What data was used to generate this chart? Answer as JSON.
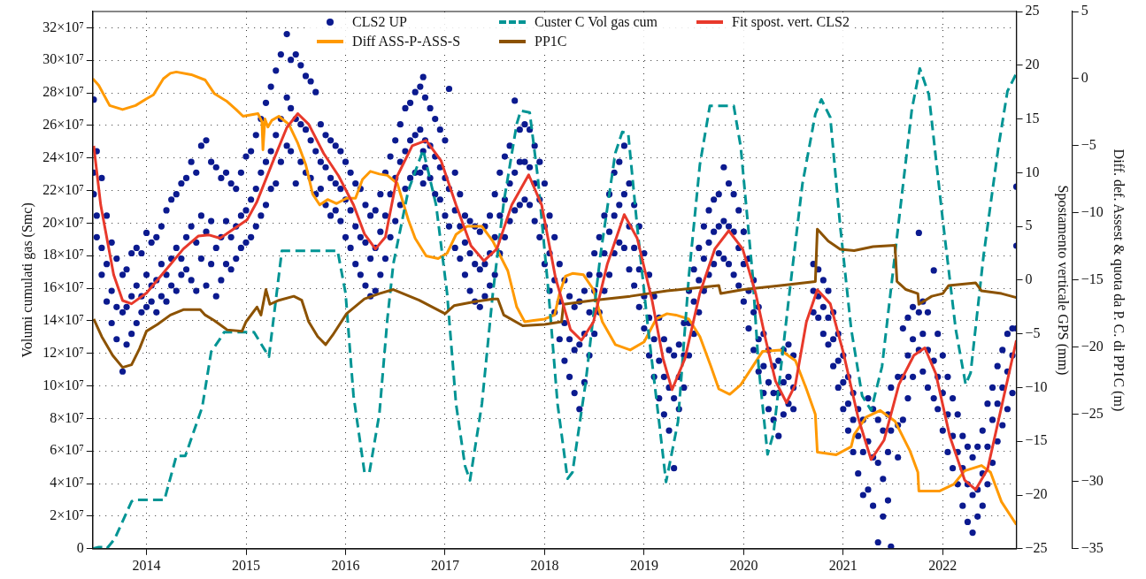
{
  "chart_data": {
    "type": "line",
    "ylabel": "Volumi cumulati gas (Smc)",
    "y2label": "Spostamento verticale GPS (mm)",
    "y3label": "Diff. def. Assest & quota da P. C. di PP1C (m)",
    "xlim": [
      2013.46,
      2022.74
    ],
    "xticks": [
      2014,
      2015,
      2016,
      2017,
      2018,
      2019,
      2020,
      2021,
      2022
    ],
    "ylim": [
      0,
      330000000
    ],
    "yticks": [
      0,
      {
        "value": 20000000,
        "label": "2×10⁷"
      },
      {
        "value": 40000000,
        "label": "4×10⁷"
      },
      {
        "value": 60000000,
        "label": "6×10⁷"
      },
      {
        "value": 80000000,
        "label": "8×10⁷"
      },
      {
        "value": 100000000,
        "label": "10×10⁷"
      },
      {
        "value": 120000000,
        "label": "12×10⁷"
      },
      {
        "value": 140000000,
        "label": "14×10⁷"
      },
      {
        "value": 160000000,
        "label": "16×10⁷"
      },
      {
        "value": 180000000,
        "label": "18×10⁷"
      },
      {
        "value": 200000000,
        "label": "20×10⁷"
      },
      {
        "value": 220000000,
        "label": "22×10⁷"
      },
      {
        "value": 240000000,
        "label": "24×10⁷"
      },
      {
        "value": 260000000,
        "label": "26×10⁷"
      },
      {
        "value": 280000000,
        "label": "28×10⁷"
      },
      {
        "value": 300000000,
        "label": "30×10⁷"
      },
      {
        "value": 320000000,
        "label": "32×10⁷"
      }
    ],
    "y2lim": [
      -25,
      25
    ],
    "y2ticks": [
      -25,
      -20,
      -15,
      -10,
      -5,
      0,
      5,
      10,
      15,
      20,
      25
    ],
    "y3lim": [
      -35,
      5
    ],
    "y3ticks": [
      -35,
      -30,
      -25,
      -20,
      -15,
      -10,
      -5,
      0,
      5
    ],
    "grid": true,
    "legend": "top",
    "series": [
      {
        "name": "CLS2 UP",
        "type": "scatter",
        "marker": "circle",
        "axis": "y2",
        "color": "#0b1a8f",
        "x": [
          2013.47,
          2013.47,
          2013.47,
          2013.5,
          2013.5,
          2013.5,
          2013.55,
          2013.55,
          2013.55,
          2013.6,
          2013.6,
          2013.6,
          2013.65,
          2013.65,
          2013.65,
          2013.7,
          2013.7,
          2013.7,
          2013.76,
          2013.76,
          2013.76,
          2013.8,
          2013.8,
          2013.8,
          2013.85,
          2013.85,
          2013.85,
          2013.9,
          2013.9,
          2013.9,
          2013.95,
          2013.95,
          2013.95,
          2014.0,
          2014.0,
          2014.0,
          2014.05,
          2014.05,
          2014.05,
          2014.1,
          2014.1,
          2014.1,
          2014.15,
          2014.15,
          2014.15,
          2014.2,
          2014.2,
          2014.2,
          2014.25,
          2014.25,
          2014.25,
          2014.3,
          2014.3,
          2014.3,
          2014.35,
          2014.35,
          2014.35,
          2014.4,
          2014.4,
          2014.4,
          2014.45,
          2014.45,
          2014.45,
          2014.5,
          2014.5,
          2014.5,
          2014.55,
          2014.55,
          2014.55,
          2014.6,
          2014.6,
          2014.6,
          2014.65,
          2014.65,
          2014.65,
          2014.7,
          2014.7,
          2014.7,
          2014.75,
          2014.75,
          2014.75,
          2014.8,
          2014.8,
          2014.8,
          2014.85,
          2014.85,
          2014.85,
          2014.9,
          2014.9,
          2014.9,
          2014.95,
          2014.95,
          2014.95,
          2015.0,
          2015.0,
          2015.0,
          2015.05,
          2015.05,
          2015.05,
          2015.1,
          2015.1,
          2015.1,
          2015.15,
          2015.15,
          2015.15,
          2015.2,
          2015.2,
          2015.2,
          2015.25,
          2015.25,
          2015.25,
          2015.3,
          2015.3,
          2015.3,
          2015.35,
          2015.35,
          2015.35,
          2015.41,
          2015.41,
          2015.41,
          2015.45,
          2015.45,
          2015.45,
          2015.5,
          2015.5,
          2015.5,
          2015.55,
          2015.55,
          2015.55,
          2015.6,
          2015.6,
          2015.6,
          2015.65,
          2015.65,
          2015.65,
          2015.7,
          2015.7,
          2015.7,
          2015.75,
          2015.75,
          2015.75,
          2015.8,
          2015.8,
          2015.8,
          2015.85,
          2015.85,
          2015.85,
          2015.9,
          2015.9,
          2015.9,
          2015.95,
          2015.95,
          2015.95,
          2016.0,
          2016.0,
          2016.0,
          2016.05,
          2016.05,
          2016.05,
          2016.1,
          2016.1,
          2016.1,
          2016.15,
          2016.15,
          2016.15,
          2016.2,
          2016.2,
          2016.2,
          2016.25,
          2016.25,
          2016.25,
          2016.3,
          2016.3,
          2016.3,
          2016.35,
          2016.35,
          2016.35,
          2016.4,
          2016.4,
          2016.4,
          2016.45,
          2016.45,
          2016.45,
          2016.5,
          2016.5,
          2016.5,
          2016.55,
          2016.55,
          2016.55,
          2016.6,
          2016.6,
          2016.6,
          2016.65,
          2016.65,
          2016.65,
          2016.7,
          2016.7,
          2016.7,
          2016.75,
          2016.75,
          2016.75,
          2016.78,
          2016.78,
          2016.78,
          2016.8,
          2016.8,
          2016.8,
          2016.85,
          2016.85,
          2016.85,
          2016.9,
          2016.9,
          2016.9,
          2016.95,
          2016.95,
          2016.95,
          2017.0,
          2017.0,
          2017.0,
          2017.04,
          2017.04,
          2017.04,
          2017.1,
          2017.1,
          2017.1,
          2017.15,
          2017.15,
          2017.15,
          2017.2,
          2017.2,
          2017.2,
          2017.25,
          2017.25,
          2017.25,
          2017.3,
          2017.3,
          2017.3,
          2017.35,
          2017.35,
          2017.35,
          2017.4,
          2017.4,
          2017.4,
          2017.45,
          2017.45,
          2017.45,
          2017.5,
          2017.5,
          2017.5,
          2017.55,
          2017.55,
          2017.55,
          2017.6,
          2017.6,
          2017.6,
          2017.65,
          2017.65,
          2017.65,
          2017.7,
          2017.7,
          2017.7,
          2017.75,
          2017.75,
          2017.75,
          2017.8,
          2017.8,
          2017.8,
          2017.85,
          2017.85,
          2017.85,
          2017.9,
          2017.9,
          2017.9,
          2017.95,
          2017.95,
          2017.95,
          2018.0,
          2018.0,
          2018.0,
          2018.05,
          2018.05,
          2018.05,
          2018.1,
          2018.1,
          2018.1,
          2018.15,
          2018.15,
          2018.15,
          2018.2,
          2018.2,
          2018.2,
          2018.25,
          2018.25,
          2018.25,
          2018.3,
          2018.3,
          2018.3,
          2018.35,
          2018.35,
          2018.35,
          2018.4,
          2018.4,
          2018.4,
          2018.45,
          2018.45,
          2018.45,
          2018.5,
          2018.5,
          2018.5,
          2018.55,
          2018.55,
          2018.55,
          2018.6,
          2018.6,
          2018.6,
          2018.65,
          2018.65,
          2018.65,
          2018.7,
          2018.7,
          2018.7,
          2018.75,
          2018.75,
          2018.75,
          2018.8,
          2018.8,
          2018.8,
          2018.85,
          2018.85,
          2018.85,
          2018.9,
          2018.9,
          2018.9,
          2018.95,
          2018.95,
          2018.95,
          2019.0,
          2019.0,
          2019.0,
          2019.05,
          2019.05,
          2019.05,
          2019.1,
          2019.1,
          2019.1,
          2019.15,
          2019.15,
          2019.15,
          2019.2,
          2019.2,
          2019.2,
          2019.25,
          2019.25,
          2019.25,
          2019.3,
          2019.3,
          2019.3,
          2019.35,
          2019.35,
          2019.35,
          2019.4,
          2019.4,
          2019.4,
          2019.45,
          2019.45,
          2019.45,
          2019.5,
          2019.5,
          2019.5,
          2019.55,
          2019.55,
          2019.55,
          2019.6,
          2019.6,
          2019.6,
          2019.65,
          2019.65,
          2019.65,
          2019.7,
          2019.7,
          2019.7,
          2019.75,
          2019.75,
          2019.75,
          2019.8,
          2019.8,
          2019.8,
          2019.85,
          2019.85,
          2019.85,
          2019.9,
          2019.9,
          2019.9,
          2019.95,
          2019.95,
          2019.95,
          2020.0,
          2020.0,
          2020.0,
          2020.05,
          2020.05,
          2020.05,
          2020.1,
          2020.1,
          2020.1,
          2020.15,
          2020.15,
          2020.15,
          2020.2,
          2020.2,
          2020.2,
          2020.25,
          2020.25,
          2020.25,
          2020.3,
          2020.3,
          2020.3,
          2020.35,
          2020.35,
          2020.35,
          2020.4,
          2020.4,
          2020.4,
          2020.45,
          2020.45,
          2020.45,
          2020.5,
          2020.5,
          2020.5,
          2020.7,
          2020.7,
          2020.7,
          2020.75,
          2020.75,
          2020.75,
          2020.8,
          2020.8,
          2020.8,
          2020.85,
          2020.85,
          2020.85,
          2020.9,
          2020.9,
          2020.9,
          2020.95,
          2020.95,
          2020.95,
          2021.0,
          2021.0,
          2021.0,
          2021.05,
          2021.05,
          2021.05,
          2021.1,
          2021.1,
          2021.1,
          2021.15,
          2021.15,
          2021.15,
          2021.2,
          2021.2,
          2021.2,
          2021.25,
          2021.25,
          2021.25,
          2021.3,
          2021.3,
          2021.3,
          2021.35,
          2021.35,
          2021.35,
          2021.4,
          2021.4,
          2021.4,
          2021.45,
          2021.45,
          2021.45,
          2021.48,
          2021.48,
          2021.48,
          2021.55,
          2021.55,
          2021.55,
          2021.6,
          2021.6,
          2021.6,
          2021.65,
          2021.65,
          2021.65,
          2021.7,
          2021.7,
          2021.7,
          2021.76,
          2021.76,
          2021.76,
          2021.8,
          2021.8,
          2021.8,
          2021.85,
          2021.85,
          2021.85,
          2021.91,
          2021.91,
          2021.91,
          2021.95,
          2021.95,
          2021.95,
          2022.0,
          2022.0,
          2022.0,
          2022.05,
          2022.05,
          2022.05,
          2022.1,
          2022.1,
          2022.1,
          2022.15,
          2022.15,
          2022.15,
          2022.2,
          2022.2,
          2022.2,
          2022.25,
          2022.25,
          2022.25,
          2022.3,
          2022.3,
          2022.3,
          2022.35,
          2022.35,
          2022.35,
          2022.4,
          2022.4,
          2022.4,
          2022.45,
          2022.45,
          2022.45,
          2022.5,
          2022.5,
          2022.5,
          2022.55,
          2022.55,
          2022.55,
          2022.6,
          2022.6,
          2022.6,
          2022.65,
          2022.65,
          2022.65,
          2022.7,
          2022.7,
          2022.7,
          2022.74,
          2022.74,
          2022.74
        ],
        "values": [
          16.8,
          10.0,
          8.0,
          12.0,
          6.0,
          4.0,
          9.5,
          3.0,
          0.5,
          6.0,
          1.5,
          -2.0,
          3.5,
          -1.0,
          -4.0,
          2.0,
          -2.5,
          -5.5,
          0.5,
          -3.0,
          -8.5,
          1.0,
          -2.5,
          -6.0,
          2.5,
          -1.5,
          -5.0,
          3.0,
          -0.5,
          -4.0,
          2.5,
          -1.5,
          -3.0,
          4.4,
          0.5,
          -2.5,
          3.5,
          -0.5,
          -2.0,
          4.0,
          0.0,
          -3.0,
          5.0,
          1.5,
          -1.5,
          6.5,
          0.5,
          -2.0,
          7.5,
          2.0,
          -0.5,
          8.0,
          3.0,
          -1.0,
          9.0,
          2.0,
          0.5,
          9.5,
          4.0,
          1.0,
          11.0,
          5.0,
          0.0,
          10.0,
          3.5,
          -1.0,
          12.5,
          6.0,
          2.0,
          13.0,
          4.5,
          -0.5,
          11.0,
          5.5,
          1.5,
          10.5,
          3.0,
          -1.5,
          9.5,
          4.0,
          0.0,
          10.0,
          5.5,
          1.5,
          9.0,
          4.0,
          1.0,
          8.5,
          5.0,
          2.0,
          10.0,
          6.0,
          3.0,
          11.5,
          6.5,
          3.5,
          12.0,
          7.5,
          4.0,
          13.5,
          8.5,
          5.0,
          15.0,
          10.0,
          6.0,
          16.5,
          11.0,
          7.0,
          18.0,
          12.0,
          8.5,
          19.5,
          13.5,
          9.0,
          21.0,
          15.0,
          11.0,
          22.9,
          17.0,
          12.5,
          20.5,
          16.0,
          12.0,
          21.0,
          15.0,
          9.0,
          20.0,
          14.5,
          11.0,
          19.0,
          14.0,
          10.0,
          18.5,
          13.0,
          9.5,
          17.5,
          12.0,
          8.0,
          14.5,
          11.0,
          8.5,
          13.5,
          10.5,
          7.0,
          13.0,
          9.5,
          6.0,
          12.5,
          9.0,
          6.5,
          12.0,
          8.5,
          5.5,
          11.0,
          7.5,
          4.0,
          10.0,
          6.5,
          3.0,
          9.0,
          5.0,
          1.5,
          8.5,
          4.0,
          0.5,
          7.0,
          3.5,
          -0.5,
          6.0,
          2.0,
          -1.5,
          6.5,
          3.0,
          -1.0,
          8.0,
          4.5,
          0.5,
          10.0,
          6.0,
          2.0,
          11.5,
          8.0,
          4.0,
          13.0,
          9.5,
          5.5,
          14.5,
          11.0,
          7.0,
          16.0,
          12.0,
          8.5,
          16.5,
          13.0,
          9.5,
          17.5,
          13.5,
          10.0,
          18.0,
          14.0,
          10.0,
          18.9,
          12.0,
          9.0,
          17.0,
          13.0,
          10.5,
          16.0,
          12.5,
          9.5,
          15.0,
          11.5,
          8.0,
          14.0,
          10.5,
          7.5,
          13.0,
          9.5,
          6.0,
          17.8,
          8.5,
          5.0,
          10.0,
          6.5,
          3.0,
          8.0,
          5.0,
          2.0,
          6.0,
          3.5,
          0.5,
          5.5,
          2.5,
          -1.0,
          5.0,
          1.5,
          -2.0,
          4.5,
          1.0,
          -2.5,
          5.0,
          1.5,
          -1.5,
          6.0,
          2.5,
          -0.5,
          8.0,
          4.0,
          0.5,
          10.0,
          6.0,
          2.5,
          11.5,
          7.5,
          4.0,
          12.5,
          9.0,
          5.5,
          16.7,
          10.0,
          6.5,
          14.0,
          11.0,
          7.0,
          14.5,
          11.0,
          7.5,
          14.0,
          10.5,
          7.0,
          12.5,
          9.0,
          5.5,
          11.0,
          7.5,
          4.0,
          9.0,
          5.0,
          1.5,
          6.0,
          2.5,
          -1.0,
          4.0,
          0.0,
          -3.0,
          1.5,
          -2.0,
          -5.5,
          0.0,
          -4.0,
          -7.5,
          -1.5,
          -5.5,
          -9.0,
          -2.5,
          -6.5,
          -10.5,
          -2.0,
          -6.0,
          -12.0,
          -1.0,
          -5.0,
          -9.5,
          0.5,
          -3.0,
          -7.0,
          2.5,
          -1.0,
          -5.0,
          4.0,
          0.5,
          -3.0,
          6.0,
          2.5,
          -1.0,
          8.0,
          4.5,
          0.5,
          10.0,
          6.0,
          2.5,
          11.0,
          7.0,
          3.5,
          12.5,
          8.0,
          3.0,
          9.0,
          5.0,
          1.0,
          7.0,
          3.0,
          -0.5,
          5.0,
          1.0,
          -2.5,
          2.5,
          -1.5,
          -4.5,
          0.5,
          -3.5,
          -7.0,
          -1.5,
          -5.5,
          -9.0,
          -3.5,
          -7.5,
          -11.0,
          -5.5,
          -9.0,
          -12.5,
          -6.5,
          -10.0,
          -14.0,
          -7.0,
          -11.0,
          -17.5,
          -6.0,
          -9.0,
          -12.0,
          -4.0,
          -7.0,
          -10.0,
          -1.0,
          -4.0,
          -7.0,
          1.0,
          -2.0,
          -5.0,
          3.0,
          0.0,
          -3.0,
          5.0,
          2.0,
          -1.0,
          6.5,
          3.5,
          0.5,
          7.5,
          4.5,
          1.5,
          8.0,
          5.0,
          2.5,
          10.5,
          5.5,
          2.0,
          9.0,
          5.0,
          1.5,
          8.0,
          4.5,
          0.5,
          6.5,
          3.0,
          -0.5,
          4.5,
          1.5,
          -2.0,
          2.0,
          -1.0,
          -4.5,
          0.0,
          -3.0,
          -6.5,
          -2.5,
          -5.5,
          -8.5,
          -5.0,
          -8.0,
          -10.5,
          -6.5,
          -9.5,
          -12.0,
          -8.0,
          -10.5,
          -13.0,
          -7.5,
          -10.5,
          -14.5,
          -6.5,
          -9.5,
          -12.5,
          -6.0,
          -9.0,
          -11.5,
          -7.0,
          -10.0,
          -12.0,
          1.5,
          -1.0,
          -3.0,
          1.0,
          -1.5,
          -3.5,
          0.0,
          -2.5,
          -5.0,
          -1.0,
          -3.5,
          -6.0,
          -3.0,
          -5.5,
          -8.0,
          -5.0,
          -7.5,
          -10.0,
          -7.0,
          -9.5,
          -12.0,
          -9.0,
          -11.5,
          -14.0,
          -10.5,
          -13.0,
          -16.0,
          -12.0,
          -14.5,
          -18.0,
          -13.0,
          -16.0,
          -20.0,
          -11.0,
          -15.0,
          -19.5,
          -12.0,
          -16.5,
          -21.0,
          -13.0,
          -17.0,
          -24.4,
          -14.0,
          -18.5,
          -22.0,
          -12.5,
          -16.0,
          -20.5,
          -10.0,
          -14.0,
          -24.8,
          -9.0,
          -13.5,
          -16.5,
          -4.5,
          -9.0,
          -13.0,
          -3.5,
          -7.0,
          -11.0,
          -2.5,
          -5.5,
          -9.0,
          4.4,
          -3.0,
          -6.5,
          -2.0,
          -5.0,
          -8.5,
          -3.0,
          -6.5,
          -10.0,
          0.9,
          -7.5,
          -11.0,
          -5.0,
          -9.0,
          -12.0,
          -7.0,
          -10.5,
          -14.0,
          -9.0,
          -12.5,
          -16.0,
          -11.0,
          -14.5,
          -17.5,
          -12.5,
          -16.0,
          -19.0,
          -14.5,
          -17.5,
          -21.0,
          -15.5,
          -19.0,
          -22.5,
          -16.5,
          -20.0,
          -23.5,
          -15.5,
          -19.5,
          -22.0,
          -14.0,
          -18.0,
          -21.0,
          -11.5,
          -15.5,
          -19.0,
          -10.0,
          -13.0,
          -17.0,
          -8.0,
          -11.5,
          -15.0,
          -6.5,
          -10.0,
          -13.5,
          -5.0,
          -8.5,
          -12.0,
          -4.5,
          -7.0,
          -10.5,
          8.7,
          3.2,
          -4.5
        ]
      },
      {
        "name": "Diff ASS-P-ASS-S",
        "type": "line",
        "axis": "y3",
        "color": "#ff9900",
        "x": [
          2013.46,
          2013.52,
          2013.63,
          2013.76,
          2013.89,
          2014.0,
          2014.07,
          2014.17,
          2014.24,
          2014.3,
          2014.45,
          2014.59,
          2014.68,
          2014.81,
          2014.9,
          2014.97,
          2015.12,
          2015.16,
          2015.17,
          2015.19,
          2015.22,
          2015.26,
          2015.33,
          2015.43,
          2015.52,
          2015.6,
          2015.67,
          2015.74,
          2015.82,
          2015.91,
          2016.01,
          2016.1,
          2016.17,
          2016.25,
          2016.34,
          2016.42,
          2016.52,
          2016.63,
          2016.7,
          2016.81,
          2016.93,
          2017.02,
          2017.11,
          2017.22,
          2017.37,
          2017.48,
          2017.63,
          2017.72,
          2017.8,
          2017.89,
          2018.0,
          2018.1,
          2018.15,
          2018.21,
          2018.28,
          2018.39,
          2018.49,
          2018.58,
          2018.71,
          2018.86,
          2019.0,
          2019.12,
          2019.23,
          2019.32,
          2019.45,
          2019.56,
          2019.67,
          2019.75,
          2019.86,
          2019.97,
          2020.19,
          2020.37,
          2020.52,
          2020.63,
          2020.72,
          2020.74,
          2020.93,
          2021.08,
          2021.11,
          2021.23,
          2021.37,
          2021.52,
          2021.67,
          2021.75,
          2021.76,
          2021.97,
          2022.11,
          2022.22,
          2022.39,
          2022.48,
          2022.59,
          2022.74
        ],
        "values": [
          0.0,
          -0.5,
          -2.0,
          -2.3,
          -2.0,
          -1.5,
          -1.2,
          0.0,
          0.4,
          0.5,
          0.3,
          -0.1,
          -1.1,
          -1.7,
          -2.3,
          -2.8,
          -2.6,
          -3.2,
          -5.3,
          -3.0,
          -3.6,
          -3.1,
          -2.8,
          -3.4,
          -4.8,
          -6.4,
          -8.6,
          -9.4,
          -9.0,
          -9.3,
          -8.9,
          -8.9,
          -7.5,
          -6.9,
          -7.1,
          -7.2,
          -7.8,
          -10.5,
          -11.9,
          -13.2,
          -13.4,
          -13.0,
          -11.6,
          -11.0,
          -11.0,
          -12.1,
          -14.3,
          -17.0,
          -18.1,
          -18.0,
          -17.9,
          -17.6,
          -16.0,
          -14.7,
          -14.5,
          -14.6,
          -15.7,
          -18.1,
          -19.8,
          -20.2,
          -19.6,
          -17.9,
          -17.5,
          -17.6,
          -17.9,
          -19.2,
          -21.4,
          -23.1,
          -23.5,
          -22.8,
          -20.3,
          -20.2,
          -21.0,
          -23.1,
          -25.0,
          -27.8,
          -28.0,
          -27.4,
          -26.5,
          -25.2,
          -24.7,
          -25.5,
          -27.7,
          -29.3,
          -30.7,
          -30.7,
          -30.2,
          -29.2,
          -28.8,
          -29.3,
          -31.5,
          -33.2
        ]
      },
      {
        "name": "Custer C Vol gas cum",
        "type": "line",
        "line_style": "dashed",
        "color": "#009494",
        "x": [
          2013.46,
          2013.52,
          2013.56,
          2013.6,
          2013.68,
          2013.85,
          2013.87,
          2014.18,
          2014.3,
          2014.39,
          2014.56,
          2014.65,
          2014.74,
          2014.78,
          2015.08,
          2015.23,
          2015.36,
          2015.92,
          2016.0,
          2016.08,
          2016.19,
          2016.24,
          2016.34,
          2016.42,
          2016.48,
          2016.63,
          2016.78,
          2016.91,
          2017.02,
          2017.11,
          2017.2,
          2017.25,
          2017.37,
          2017.48,
          2017.59,
          2017.72,
          2017.76,
          2017.85,
          2017.93,
          2018.04,
          2018.13,
          2018.23,
          2018.28,
          2018.41,
          2018.56,
          2018.71,
          2018.78,
          2018.84,
          2018.93,
          2019.04,
          2019.15,
          2019.22,
          2019.34,
          2019.45,
          2019.56,
          2019.66,
          2019.9,
          2019.97,
          2020.09,
          2020.15,
          2020.24,
          2020.3,
          2020.45,
          2020.59,
          2020.72,
          2020.78,
          2020.87,
          2020.97,
          2021.08,
          2021.19,
          2021.28,
          2021.39,
          2021.56,
          2021.69,
          2021.77,
          2021.86,
          2022.0,
          2022.13,
          2022.23,
          2022.28,
          2022.41,
          2022.56,
          2022.65,
          2022.74
        ],
        "values": [
          0,
          1000000,
          1000000,
          0,
          6000000,
          29000000,
          30000000,
          30000000,
          57000000,
          57000000,
          87000000,
          121000000,
          129000000,
          133000000,
          133000000,
          118000000,
          183000000,
          183000000,
          157000000,
          94000000,
          47000000,
          47000000,
          83000000,
          141000000,
          175000000,
          220000000,
          245000000,
          211000000,
          157000000,
          89000000,
          51000000,
          42000000,
          89000000,
          157000000,
          213000000,
          261000000,
          269000000,
          268000000,
          229000000,
          157000000,
          89000000,
          43000000,
          47000000,
          101000000,
          180000000,
          243000000,
          256000000,
          255000000,
          198000000,
          135000000,
          78000000,
          41000000,
          78000000,
          168000000,
          236000000,
          272000000,
          272000000,
          247000000,
          168000000,
          112000000,
          58000000,
          71000000,
          152000000,
          224000000,
          267000000,
          276000000,
          265000000,
          198000000,
          135000000,
          94000000,
          85000000,
          112000000,
          202000000,
          270000000,
          295000000,
          279000000,
          202000000,
          135000000,
          101000000,
          108000000,
          180000000,
          247000000,
          281000000,
          292000000
        ]
      },
      {
        "name": "PP1C",
        "type": "line",
        "axis": "y3",
        "color": "#8c5200",
        "x": [
          2013.47,
          2013.55,
          2013.66,
          2013.76,
          2013.85,
          2013.93,
          2014.0,
          2014.11,
          2014.24,
          2014.37,
          2014.54,
          2014.59,
          2014.68,
          2014.81,
          2014.96,
          2015.0,
          2015.11,
          2015.15,
          2015.2,
          2015.24,
          2015.33,
          2015.48,
          2015.56,
          2015.63,
          2015.72,
          2015.8,
          2015.87,
          2016.01,
          2016.19,
          2016.34,
          2016.48,
          2016.74,
          2017.0,
          2017.09,
          2017.3,
          2017.48,
          2017.53,
          2017.59,
          2017.78,
          2018.0,
          2018.17,
          2018.19,
          2018.49,
          2018.86,
          2019.23,
          2019.75,
          2019.77,
          2020.0,
          2020.37,
          2020.72,
          2020.74,
          2020.85,
          2020.97,
          2021.11,
          2021.3,
          2021.52,
          2021.54,
          2021.63,
          2021.75,
          2021.76,
          2021.89,
          2022.0,
          2022.06,
          2022.33,
          2022.39,
          2022.59,
          2022.74
        ],
        "values": [
          -17.9,
          -19.2,
          -20.6,
          -21.5,
          -21.3,
          -20.1,
          -18.8,
          -18.3,
          -17.6,
          -17.2,
          -17.2,
          -17.6,
          -18.0,
          -18.7,
          -18.8,
          -18.1,
          -17.0,
          -17.6,
          -15.7,
          -16.8,
          -16.5,
          -16.2,
          -16.5,
          -18.1,
          -19.2,
          -19.8,
          -19.1,
          -17.5,
          -16.4,
          -16.0,
          -15.7,
          -16.5,
          -17.5,
          -16.9,
          -16.6,
          -16.4,
          -16.4,
          -17.6,
          -18.4,
          -18.3,
          -18.1,
          -16.8,
          -16.5,
          -16.2,
          -15.8,
          -15.4,
          -16.0,
          -15.7,
          -15.4,
          -15.1,
          -11.2,
          -12.1,
          -12.7,
          -12.8,
          -12.5,
          -12.4,
          -15.1,
          -15.7,
          -16.0,
          -16.8,
          -16.2,
          -16.0,
          -15.4,
          -15.2,
          -15.8,
          -16.0,
          -16.3
        ]
      },
      {
        "name": "Fit spost. vert. CLS2",
        "type": "line",
        "axis": "y2",
        "color": "#e8392b",
        "x": [
          2013.47,
          2013.54,
          2013.67,
          2013.76,
          2013.85,
          2014.0,
          2014.19,
          2014.37,
          2014.52,
          2014.63,
          2014.74,
          2014.85,
          2015.01,
          2015.11,
          2015.26,
          2015.41,
          2015.52,
          2015.63,
          2015.78,
          2015.93,
          2016.08,
          2016.19,
          2016.3,
          2016.4,
          2016.52,
          2016.67,
          2016.81,
          2016.96,
          2017.11,
          2017.26,
          2017.39,
          2017.52,
          2017.67,
          2017.84,
          2017.97,
          2018.11,
          2018.26,
          2018.37,
          2018.49,
          2018.63,
          2018.8,
          2018.93,
          2019.08,
          2019.19,
          2019.28,
          2019.41,
          2019.56,
          2019.71,
          2019.85,
          2019.99,
          2020.12,
          2020.22,
          2020.32,
          2020.43,
          2020.52,
          2020.63,
          2020.74,
          2020.87,
          2021.0,
          2021.15,
          2021.28,
          2021.41,
          2021.56,
          2021.71,
          2021.82,
          2021.93,
          2022.07,
          2022.22,
          2022.33,
          2022.45,
          2022.59,
          2022.74
        ],
        "values": [
          12.5,
          7.0,
          0.5,
          -1.9,
          -2.2,
          -1.2,
          0.9,
          2.9,
          4.1,
          4.2,
          3.9,
          4.6,
          5.6,
          7.3,
          10.8,
          14.2,
          15.5,
          14.5,
          11.8,
          9.7,
          7.0,
          4.3,
          2.9,
          4.0,
          9.7,
          12.5,
          13.0,
          11.1,
          7.0,
          3.2,
          1.8,
          2.9,
          7.0,
          9.8,
          7.0,
          0.2,
          -4.6,
          -5.6,
          -3.9,
          1.5,
          6.1,
          3.9,
          -1.9,
          -7.3,
          -10.2,
          -7.3,
          -1.2,
          2.9,
          4.6,
          2.9,
          -1.2,
          -5.5,
          -9.4,
          -11.4,
          -9.7,
          -3.9,
          -0.9,
          -2.2,
          -6.7,
          -12.8,
          -16.7,
          -14.9,
          -9.7,
          -7.0,
          -6.3,
          -8.7,
          -14.5,
          -18.6,
          -19.5,
          -17.6,
          -11.8,
          -5.6
        ]
      }
    ]
  }
}
